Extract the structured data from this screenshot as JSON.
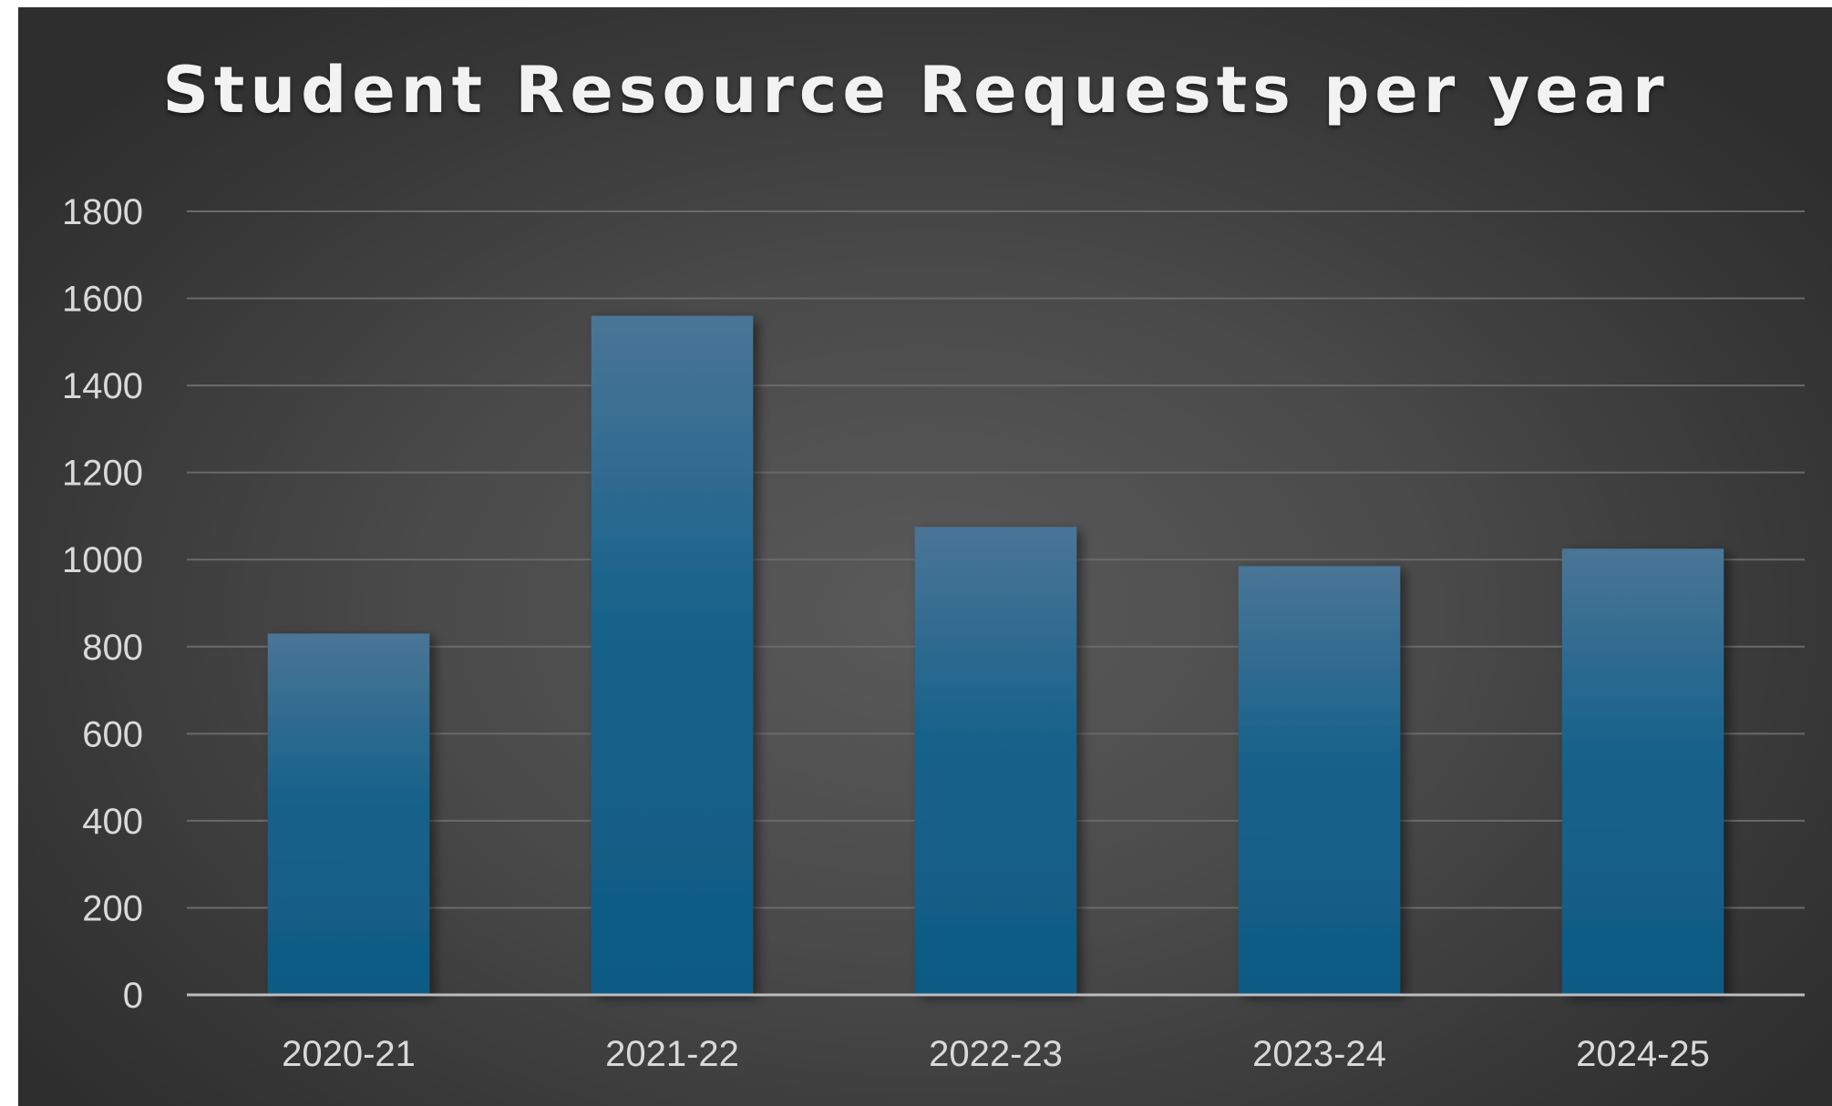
{
  "chart_data": {
    "type": "bar",
    "title": "Student Resource Requests per year",
    "categories": [
      "2020-21",
      "2021-22",
      "2022-23",
      "2023-24",
      "2024-25"
    ],
    "values": [
      830,
      1560,
      1075,
      985,
      1025
    ],
    "ylim": [
      0,
      1800
    ],
    "yticks": [
      0,
      200,
      400,
      600,
      800,
      1000,
      1200,
      1400,
      1600,
      1800
    ],
    "xlabel": "",
    "ylabel": "",
    "grid": true,
    "legend": "none",
    "colors": {
      "bar_top": "#4a7596",
      "bar_bottom": "#0f5a84",
      "gridline": "#6a6a6a",
      "axis": "#bdbdbd",
      "text": "#d9d9d9"
    }
  }
}
